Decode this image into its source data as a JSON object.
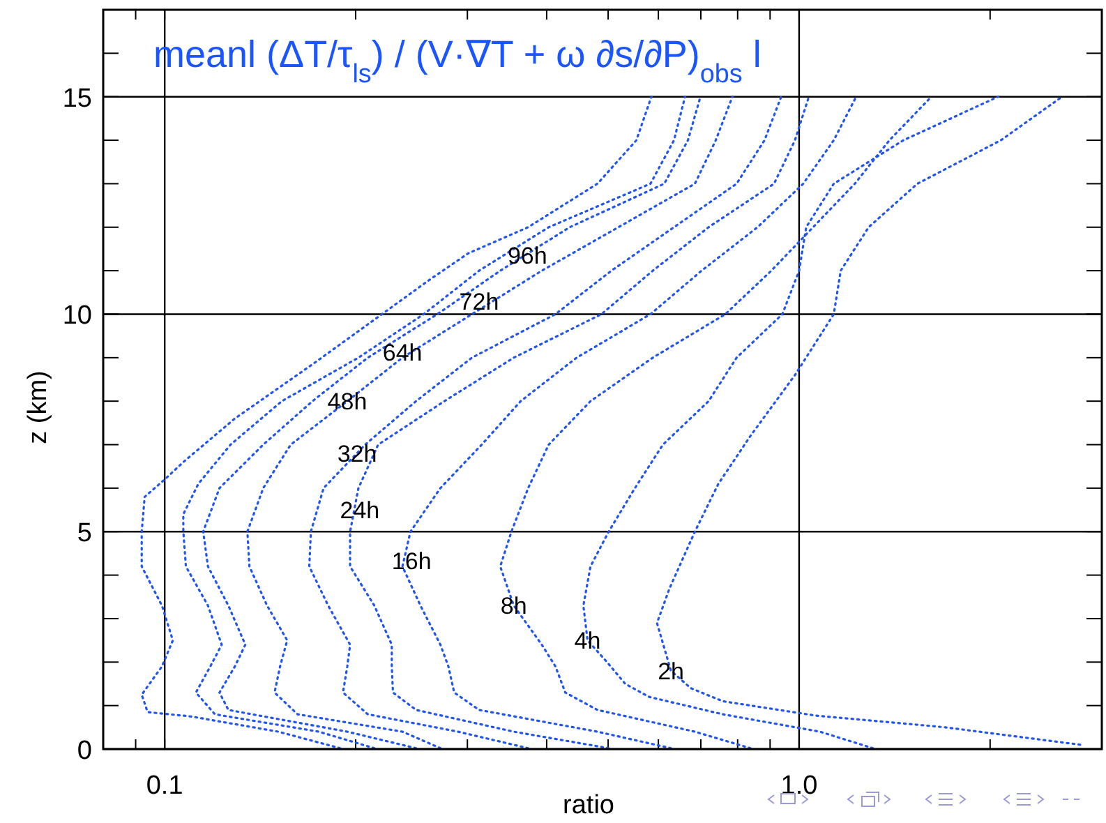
{
  "chart_data": {
    "type": "line",
    "title": "meanl (ΔT/τ$_{ls}$) / (V·∇T + ω ∂s/∂P)$_{obs}$ l",
    "xlabel": "ratio",
    "ylabel": "z  (km)",
    "log": "x",
    "xlim": [
      0.08,
      3
    ],
    "ylim": [
      0,
      17
    ],
    "grid": true,
    "line_style": "dotted",
    "marker": "none",
    "xticks": [
      {
        "value": 0.09,
        "label": null
      },
      {
        "value": 0.1,
        "label": "0.1"
      },
      {
        "value": 0.2,
        "label": null
      },
      {
        "value": 0.3,
        "label": null
      },
      {
        "value": 0.4,
        "label": null
      },
      {
        "value": 0.5,
        "label": null
      },
      {
        "value": 0.6,
        "label": null
      },
      {
        "value": 0.7,
        "label": null
      },
      {
        "value": 0.8,
        "label": null
      },
      {
        "value": 0.9,
        "label": null
      },
      {
        "value": 1,
        "label": "1.0"
      },
      {
        "value": 2,
        "label": null
      }
    ],
    "yticks": [
      0,
      {
        "value": 1,
        "label": null
      },
      {
        "value": 2,
        "label": null
      },
      {
        "value": 3,
        "label": null
      },
      {
        "value": 4,
        "label": null
      },
      5,
      {
        "value": 6,
        "label": null
      },
      {
        "value": 7,
        "label": null
      },
      {
        "value": 8,
        "label": null
      },
      {
        "value": 9,
        "label": null
      },
      10,
      {
        "value": 11,
        "label": null
      },
      {
        "value": 12,
        "label": null
      },
      {
        "value": 13,
        "label": null
      },
      {
        "value": 14,
        "label": null
      },
      15,
      {
        "value": 16,
        "label": null
      }
    ],
    "series": [
      {
        "color": "#2255ee",
        "x": [
          0.189,
          0.151,
          0.11,
          0.094,
          0.092,
          0.099,
          0.103,
          0.099,
          0.092,
          0.092,
          0.093,
          0.1,
          0.107,
          0.129,
          0.173,
          0.22,
          0.262,
          0.301,
          0.374,
          0.481,
          0.554,
          0.585
        ],
        "values": [
          0.02,
          0.4,
          0.75,
          0.85,
          1.25,
          1.9,
          2.5,
          3.3,
          4.2,
          5,
          5.8,
          6.2,
          6.6,
          7.6,
          8.9,
          10,
          10.8,
          11.4,
          12,
          13,
          14,
          15
        ]
      },
      {
        "color": "#2255ee",
        "x": [
          0.214,
          0.175,
          0.12,
          0.112,
          0.118,
          0.123,
          0.117,
          0.108,
          0.107,
          0.107,
          0.113,
          0.127,
          0.153,
          0.202,
          0.256,
          0.313,
          0.403,
          0.583,
          0.635,
          0.661
        ],
        "values": [
          0.02,
          0.4,
          0.8,
          1.3,
          1.9,
          2.4,
          3.3,
          4.2,
          5,
          5.4,
          6.1,
          7,
          8,
          9,
          10,
          11,
          12,
          13,
          14,
          15
        ]
      },
      {
        "color": "#2255ee",
        "x": [
          0.249,
          0.194,
          0.126,
          0.122,
          0.129,
          0.134,
          0.126,
          0.117,
          0.115,
          0.122,
          0.143,
          0.171,
          0.209,
          0.269,
          0.338,
          0.435,
          0.613,
          0.668,
          0.699
        ],
        "values": [
          0.02,
          0.4,
          0.9,
          1.3,
          1.9,
          2.4,
          3.3,
          4.2,
          5,
          6,
          7,
          8,
          9,
          10,
          11,
          12,
          13,
          14,
          15
        ]
      },
      {
        "color": "#2255ee",
        "x": [
          0.272,
          0.237,
          0.162,
          0.149,
          0.152,
          0.156,
          0.145,
          0.136,
          0.135,
          0.143,
          0.158,
          0.194,
          0.237,
          0.305,
          0.393,
          0.519,
          0.685,
          0.739,
          0.785
        ],
        "values": [
          0.02,
          0.4,
          0.8,
          1.3,
          1.9,
          2.5,
          3.3,
          4.2,
          5,
          6,
          7,
          8,
          9,
          10,
          11,
          12,
          13,
          14,
          15
        ]
      },
      {
        "color": "#2255ee",
        "x": [
          0.374,
          0.29,
          0.209,
          0.191,
          0.194,
          0.196,
          0.181,
          0.169,
          0.17,
          0.178,
          0.207,
          0.249,
          0.305,
          0.413,
          0.506,
          0.635,
          0.797,
          0.882,
          0.937
        ],
        "values": [
          0.02,
          0.4,
          0.8,
          1.3,
          1.9,
          2.4,
          3.3,
          4.2,
          5,
          6,
          7,
          8,
          9,
          10,
          11,
          12,
          13,
          14,
          15
        ]
      },
      {
        "color": "#2255ee",
        "x": [
          0.501,
          0.355,
          0.249,
          0.229,
          0.228,
          0.228,
          0.214,
          0.196,
          0.196,
          0.202,
          0.217,
          0.276,
          0.355,
          0.488,
          0.588,
          0.72,
          0.913,
          0.985,
          1.036
        ],
        "values": [
          0.02,
          0.4,
          0.9,
          1.3,
          1.9,
          2.4,
          3.3,
          4.2,
          5,
          6,
          7,
          8,
          9,
          10,
          11,
          12,
          13,
          14,
          15
        ]
      },
      {
        "color": "#2255ee",
        "x": [
          0.628,
          0.481,
          0.313,
          0.286,
          0.28,
          0.272,
          0.253,
          0.237,
          0.244,
          0.272,
          0.316,
          0.364,
          0.446,
          0.583,
          0.702,
          0.86,
          1.015,
          1.134,
          1.23
        ],
        "values": [
          0.02,
          0.4,
          0.9,
          1.3,
          1.9,
          2.4,
          3.3,
          4.2,
          5,
          6,
          7,
          8,
          9,
          10,
          11,
          12,
          13,
          14,
          15
        ]
      },
      {
        "color": "#2255ee",
        "x": [
          0.838,
          0.685,
          0.481,
          0.428,
          0.413,
          0.393,
          0.355,
          0.338,
          0.352,
          0.374,
          0.403,
          0.469,
          0.588,
          0.765,
          0.904,
          1.052,
          1.224,
          1.388,
          1.616
        ],
        "values": [
          0.02,
          0.4,
          0.9,
          1.3,
          1.9,
          2.4,
          3.3,
          4.2,
          5,
          6,
          7,
          8,
          9,
          10,
          11,
          12,
          13,
          14,
          15
        ]
      },
      {
        "color": "#2255ee",
        "x": [
          1.307,
          1.078,
          0.758,
          0.58,
          0.532,
          0.498,
          0.464,
          0.457,
          0.469,
          0.501,
          0.551,
          0.61,
          0.72,
          0.797,
          0.941,
          1.0,
          1.026,
          1.134,
          1.46,
          2.059
        ],
        "values": [
          0.02,
          0.4,
          0.8,
          1.2,
          1.5,
          2,
          2.5,
          3.3,
          4.2,
          5,
          6,
          7,
          8,
          9,
          10,
          11,
          12,
          13,
          14,
          15
        ]
      },
      {
        "color": "#2255ee",
        "x": [
          2.773,
          1.7,
          1.062,
          0.758,
          0.675,
          0.628,
          0.597,
          0.625,
          0.685,
          0.746,
          0.838,
          0.985,
          1.134,
          1.163,
          1.287,
          1.536,
          2.08,
          2.597
        ],
        "values": [
          0.1,
          0.5,
          0.77,
          1.1,
          1.4,
          1.8,
          2.9,
          3.7,
          5,
          6.1,
          7.2,
          8.6,
          10,
          11,
          12,
          13,
          14,
          15
        ]
      }
    ],
    "annotations": [
      {
        "text": "96h",
        "x": 0.373,
        "y": 11.35
      },
      {
        "text": "72h",
        "x": 0.313,
        "y": 10.3
      },
      {
        "text": "64h",
        "x": 0.237,
        "y": 9.13
      },
      {
        "text": "48h",
        "x": 0.194,
        "y": 8
      },
      {
        "text": "32h",
        "x": 0.201,
        "y": 6.8
      },
      {
        "text": "24h",
        "x": 0.203,
        "y": 5.5
      },
      {
        "text": "16h",
        "x": 0.245,
        "y": 4.33
      },
      {
        "text": "8h",
        "x": 0.355,
        "y": 3.3
      },
      {
        "text": "4h",
        "x": 0.464,
        "y": 2.5
      },
      {
        "text": "2h",
        "x": 0.628,
        "y": 1.8
      }
    ]
  }
}
